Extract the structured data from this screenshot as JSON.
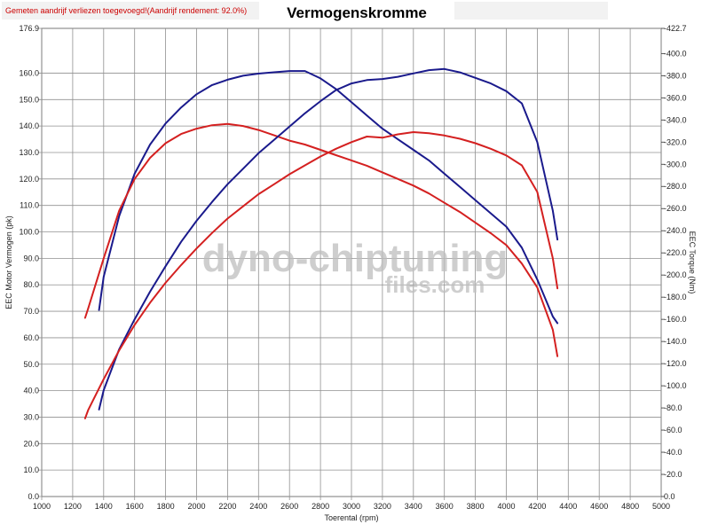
{
  "header": {
    "note": "Gemeten aandrijf verliezen toegevoegd!(Aandrijf rendement: 92.0%)",
    "title": "Vermogenskromme"
  },
  "watermark": {
    "line1": "dyno-chiptuning",
    "line2": "files.com"
  },
  "colors": {
    "blue": "#1a1a8c",
    "red": "#d42020",
    "grid": "#909090",
    "watermark": "#bdbdbd"
  },
  "chart_data": {
    "type": "line",
    "title": "Vermogenskromme",
    "xlabel": "Toerental (rpm)",
    "ylabel": "EEC Motor Vermogen (pk)",
    "y2label": "EEC Torque (Nm)",
    "xlim": [
      1000,
      5000
    ],
    "ylim": [
      0,
      176.9
    ],
    "y2lim": [
      0,
      422.7
    ],
    "grid": true,
    "x_ticks": [
      "1000",
      "1200",
      "1400",
      "1600",
      "1800",
      "2000",
      "2200",
      "2400",
      "2600",
      "2800",
      "3000",
      "3200",
      "3400",
      "3600",
      "3800",
      "4000",
      "4200",
      "4400",
      "4600",
      "4800",
      "5000"
    ],
    "y_ticks": [
      "0.0",
      "10.0",
      "20.0",
      "30.0",
      "40.0",
      "50.0",
      "60.0",
      "70.0",
      "80.0",
      "90.0",
      "100.0",
      "110.0",
      "120.0",
      "130.0",
      "140.0",
      "150.0",
      "160.0",
      "176.9"
    ],
    "y2_ticks": [
      "0.0",
      "-20.0",
      "-40.0",
      "-60.0",
      "-80.0",
      "-100.0",
      "-120.0",
      "-140.0",
      "-160.0",
      "-180.0",
      "-200.0",
      "-220.0",
      "-240.0",
      "-260.0",
      "-280.0",
      "-300.0",
      "-320.0",
      "-340.0",
      "-360.0",
      "-380.0",
      "-400.0",
      "-422.7"
    ],
    "series": [
      {
        "color": "#1a1a8c",
        "axis": "left",
        "points": [
          [
            1370,
            70.5
          ],
          [
            1400,
            83
          ],
          [
            1500,
            106
          ],
          [
            1600,
            122
          ],
          [
            1700,
            133
          ],
          [
            1800,
            141
          ],
          [
            1900,
            147
          ],
          [
            2000,
            152
          ],
          [
            2100,
            155.5
          ],
          [
            2200,
            157.5
          ],
          [
            2300,
            159
          ],
          [
            2400,
            159.8
          ],
          [
            2500,
            160.3
          ],
          [
            2600,
            160.8
          ],
          [
            2700,
            160.8
          ],
          [
            2800,
            158
          ],
          [
            2900,
            154
          ],
          [
            3000,
            149
          ],
          [
            3100,
            144
          ],
          [
            3200,
            139
          ],
          [
            3300,
            135
          ],
          [
            3400,
            131
          ],
          [
            3500,
            127
          ],
          [
            3600,
            122
          ],
          [
            3700,
            117
          ],
          [
            3800,
            112
          ],
          [
            3900,
            107
          ],
          [
            4000,
            102
          ],
          [
            4100,
            94
          ],
          [
            4200,
            82
          ],
          [
            4300,
            68
          ],
          [
            4330,
            65.5
          ]
        ]
      },
      {
        "color": "#d42020",
        "axis": "left",
        "points": [
          [
            1280,
            67.5
          ],
          [
            1300,
            71
          ],
          [
            1400,
            90
          ],
          [
            1500,
            108
          ],
          [
            1600,
            120
          ],
          [
            1700,
            128
          ],
          [
            1800,
            133.5
          ],
          [
            1900,
            137
          ],
          [
            2000,
            139
          ],
          [
            2100,
            140.3
          ],
          [
            2200,
            140.8
          ],
          [
            2300,
            140
          ],
          [
            2400,
            138.5
          ],
          [
            2500,
            136.5
          ],
          [
            2600,
            134.5
          ],
          [
            2700,
            133
          ],
          [
            2800,
            131
          ],
          [
            2900,
            129
          ],
          [
            3000,
            127
          ],
          [
            3100,
            125
          ],
          [
            3200,
            122.5
          ],
          [
            3300,
            120
          ],
          [
            3400,
            117.5
          ],
          [
            3500,
            114.5
          ],
          [
            3600,
            111
          ],
          [
            3700,
            107.5
          ],
          [
            3800,
            103.5
          ],
          [
            3900,
            99.5
          ],
          [
            4000,
            95
          ],
          [
            4100,
            88
          ],
          [
            4200,
            79
          ],
          [
            4300,
            63
          ],
          [
            4330,
            53
          ]
        ]
      },
      {
        "color": "#1a1a8c",
        "axis": "right",
        "points": [
          [
            1370,
            78.5
          ],
          [
            1400,
            96
          ],
          [
            1500,
            133
          ],
          [
            1600,
            160
          ],
          [
            1700,
            185
          ],
          [
            1800,
            208
          ],
          [
            1900,
            230
          ],
          [
            2000,
            249
          ],
          [
            2100,
            266
          ],
          [
            2200,
            282
          ],
          [
            2300,
            296
          ],
          [
            2400,
            310
          ],
          [
            2500,
            322
          ],
          [
            2600,
            334
          ],
          [
            2700,
            346
          ],
          [
            2800,
            357
          ],
          [
            2900,
            367
          ],
          [
            3000,
            373
          ],
          [
            3100,
            376
          ],
          [
            3200,
            377
          ],
          [
            3300,
            379
          ],
          [
            3400,
            382
          ],
          [
            3500,
            385
          ],
          [
            3600,
            386
          ],
          [
            3700,
            383
          ],
          [
            3800,
            378
          ],
          [
            3900,
            373
          ],
          [
            4000,
            366
          ],
          [
            4100,
            355
          ],
          [
            4200,
            320
          ],
          [
            4300,
            258
          ],
          [
            4330,
            232
          ]
        ]
      },
      {
        "color": "#d42020",
        "axis": "right",
        "points": [
          [
            1280,
            70.5
          ],
          [
            1300,
            78
          ],
          [
            1400,
            106
          ],
          [
            1500,
            132
          ],
          [
            1600,
            155
          ],
          [
            1700,
            175
          ],
          [
            1800,
            193
          ],
          [
            1900,
            209
          ],
          [
            2000,
            224
          ],
          [
            2100,
            238
          ],
          [
            2200,
            251
          ],
          [
            2300,
            262
          ],
          [
            2400,
            273
          ],
          [
            2500,
            282
          ],
          [
            2600,
            291
          ],
          [
            2700,
            299
          ],
          [
            2800,
            307
          ],
          [
            2900,
            314
          ],
          [
            3000,
            320
          ],
          [
            3100,
            325
          ],
          [
            3200,
            324
          ],
          [
            3300,
            327
          ],
          [
            3400,
            329
          ],
          [
            3500,
            328
          ],
          [
            3600,
            326
          ],
          [
            3700,
            323
          ],
          [
            3800,
            319
          ],
          [
            3900,
            314
          ],
          [
            4000,
            308
          ],
          [
            4100,
            299
          ],
          [
            4200,
            275
          ],
          [
            4300,
            215
          ],
          [
            4330,
            188
          ]
        ]
      }
    ]
  }
}
